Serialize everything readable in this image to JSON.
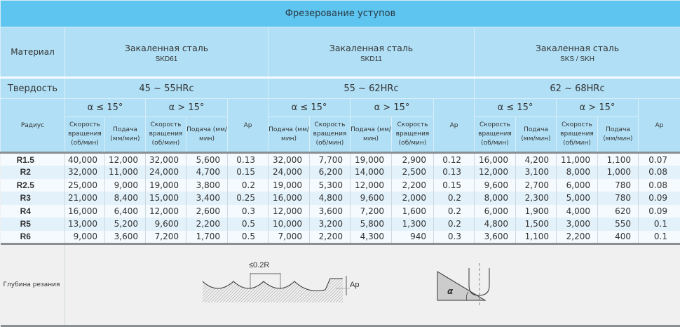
{
  "title": "Фрезерование уступов",
  "material_label": "Материал",
  "hardness_label": "Твердость",
  "radius_label": "Радиус",
  "depth_label": "Глубина резания",
  "groups": [
    {
      "material": "Закаленная сталь",
      "code": "SKD61",
      "hardness": "45 ~ 55HRc",
      "a1": "α ≤ 15°",
      "a2": "α > 15°",
      "cols": [
        "Скорость вращения (об/мин)",
        "Подача (мм/мин)",
        "Скорость вращения (об/мин)",
        "Подача (мм/мин)"
      ],
      "ap": "Ap"
    },
    {
      "material": "Закаленная сталь",
      "code": "SKD11",
      "hardness": "55 ~ 62HRc",
      "a1": "α ≤ 15°",
      "a2": "α > 15°",
      "cols": [
        "Подача (мм/мин)",
        "Скорость вращения (об/мин)",
        "Подача (мм/мин)",
        "Скорость вращения (об/мин)"
      ],
      "ap": "Ap"
    },
    {
      "material": "Закаленная сталь",
      "code": "SKS / SKH",
      "hardness": "62 ~ 68HRc",
      "a1": "α ≤ 15°",
      "a2": "α > 15°",
      "cols": [
        "Скорость вращения (об/мин)",
        "Подача (мм/мин)",
        "Скорость вращения (об/мин)",
        "Подача (мм/мин)"
      ],
      "ap": "Ap"
    }
  ],
  "rows": [
    [
      "R1.5",
      "40,000",
      "12,000",
      "32,000",
      "5,600",
      "0.13",
      "32,000",
      "7,700",
      "19,000",
      "2,900",
      "0.12",
      "16,000",
      "4,200",
      "11,000",
      "1,100",
      "0.07"
    ],
    [
      "R2",
      "32,000",
      "11,000",
      "24,000",
      "4,700",
      "0.15",
      "24,000",
      "6,200",
      "14,000",
      "2,500",
      "0.13",
      "12,000",
      "3,100",
      "8,000",
      "1,000",
      "0.08"
    ],
    [
      "R2.5",
      "25,000",
      "9,000",
      "19,000",
      "3,800",
      "0.2",
      "19,000",
      "5,300",
      "12,000",
      "2,200",
      "0.15",
      "9,600",
      "2,700",
      "6,000",
      "780",
      "0.08"
    ],
    [
      "R3",
      "21,000",
      "8,400",
      "15,000",
      "3,400",
      "0.25",
      "16,000",
      "4,800",
      "9,600",
      "2,000",
      "0.2",
      "8,000",
      "2,300",
      "5,000",
      "780",
      "0.09"
    ],
    [
      "R4",
      "16,000",
      "6,400",
      "12,000",
      "2,600",
      "0.3",
      "12,000",
      "3,600",
      "7,200",
      "1,600",
      "0.2",
      "6,000",
      "1,900",
      "4,000",
      "620",
      "0.09"
    ],
    [
      "R5",
      "13,000",
      "5,200",
      "9,600",
      "2,200",
      "0.5",
      "10,000",
      "3,200",
      "5,800",
      "1,300",
      "0.2",
      "4,800",
      "1,500",
      "3,000",
      "550",
      "0.1"
    ],
    [
      "R6",
      "9,000",
      "3,600",
      "7,200",
      "1,700",
      "0.5",
      "7,000",
      "2,200",
      "4,300",
      "940",
      "0.3",
      "3,600",
      "1,100",
      "2,200",
      "400",
      "0.1"
    ]
  ],
  "diagram": {
    "pitch": "≤0.2R",
    "ap": "Ap",
    "alpha": "α"
  }
}
